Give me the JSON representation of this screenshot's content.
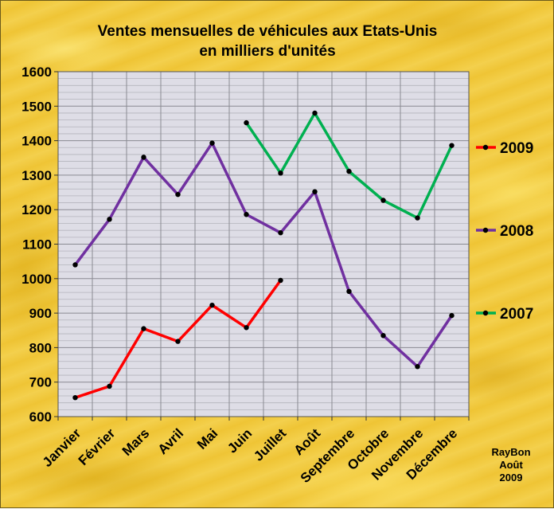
{
  "chart_data": {
    "type": "line",
    "title": "Ventes mensuelles de véhicules aux Etats-Unis",
    "subtitle": "en milliers d'unités",
    "categories": [
      "Janvier",
      "Février",
      "Mars",
      "Avril",
      "Mai",
      "Juin",
      "Juillet",
      "Août",
      "Septembre",
      "Octobre",
      "Novembre",
      "Décembre"
    ],
    "ylim": [
      600,
      1600
    ],
    "yticks": [
      600,
      700,
      800,
      900,
      1000,
      1100,
      1200,
      1300,
      1400,
      1500,
      1600
    ],
    "grid": true,
    "legend_position": "right",
    "series": [
      {
        "name": "2009",
        "color": "#ff0000",
        "values": [
          655,
          688,
          855,
          818,
          923,
          858,
          995,
          null,
          null,
          null,
          null,
          null
        ]
      },
      {
        "name": "2008",
        "color": "#7030a0",
        "values": [
          1040,
          1172,
          1352,
          1244,
          1393,
          1186,
          1133,
          1252,
          963,
          835,
          745,
          893
        ]
      },
      {
        "name": "2007",
        "color": "#00b050",
        "values": [
          null,
          null,
          null,
          null,
          null,
          1452,
          1306,
          1480,
          1311,
          1227,
          1176,
          1386
        ]
      }
    ]
  },
  "credit": {
    "line1": "RayBon",
    "line2": "Août",
    "line3": "2009"
  }
}
